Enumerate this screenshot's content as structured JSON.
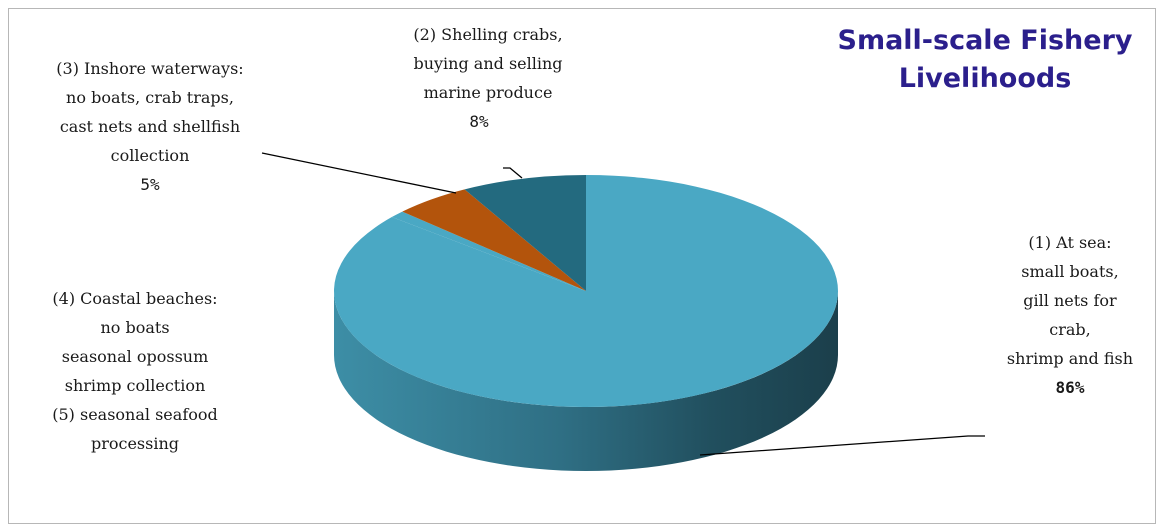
{
  "chart_data": {
    "type": "pie",
    "title": "Small-scale Fishery Livelihoods",
    "slices": [
      {
        "label_lines": [
          "(1) At sea:",
          "small boats,",
          "gill nets for",
          "crab,",
          "shrimp and fish"
        ],
        "percent_label": "86%",
        "value": 86,
        "color": "#4aa8c4"
      },
      {
        "label_lines": [
          "(2) Shelling crabs,",
          "buying and selling",
          "marine produce"
        ],
        "percent_label": "8%",
        "value": 8,
        "color": "#236a7f"
      },
      {
        "label_lines": [
          "(3) Inshore waterways:",
          "no boats, crab traps,",
          "cast nets and shellfish",
          "collection"
        ],
        "percent_label": "5%",
        "value": 5,
        "color": "#b3540c"
      },
      {
        "label_lines": [
          "(4) Coastal beaches:",
          "no boats",
          "seasonal opossum",
          "shrimp collection",
          "(5) seasonal seafood",
          "processing"
        ],
        "percent_label": "",
        "value": 1,
        "color": "#4aa8c4"
      }
    ],
    "legend": "none"
  }
}
